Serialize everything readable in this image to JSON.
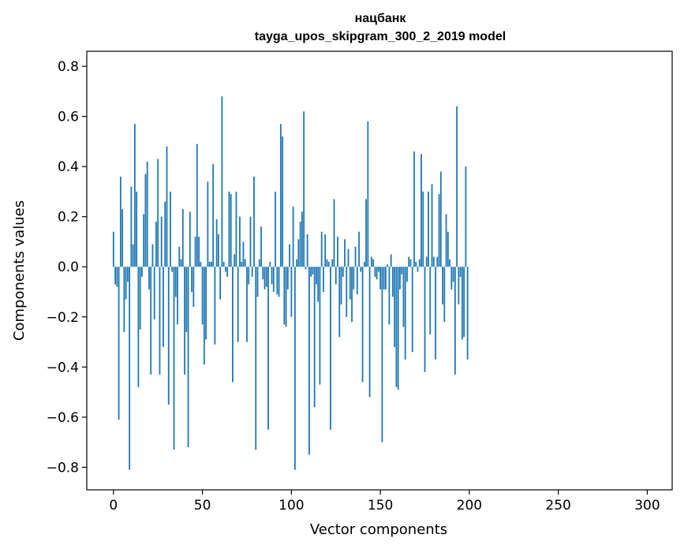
{
  "chart_data": {
    "type": "bar",
    "title_line1": "нацбанк",
    "title_line2": "tayga_upos_skipgram_300_2_2019 model",
    "xlabel": "Vector components",
    "ylabel": "Components values",
    "xlim": [
      -15,
      314
    ],
    "ylim": [
      -0.89,
      0.86
    ],
    "xticks": [
      0,
      50,
      100,
      150,
      200,
      250,
      300
    ],
    "yticks": [
      -0.8,
      -0.6,
      -0.4,
      -0.2,
      0.0,
      0.2,
      0.4,
      0.6,
      0.8
    ],
    "ytick_labels": [
      "−0.8",
      "−0.6",
      "−0.4",
      "−0.2",
      "0.0",
      "0.2",
      "0.4",
      "0.6",
      "0.8"
    ],
    "xtick_labels": [
      "0",
      "50",
      "100",
      "150",
      "200",
      "250",
      "300"
    ],
    "bar_color": "#1f77b4",
    "grid": false,
    "values": [
      0.14,
      -0.07,
      -0.08,
      -0.61,
      0.36,
      0.23,
      -0.26,
      -0.13,
      -0.06,
      -0.81,
      0.32,
      0.09,
      0.57,
      0.3,
      -0.48,
      -0.25,
      -0.04,
      0.21,
      0.37,
      0.42,
      -0.09,
      -0.43,
      0.09,
      -0.21,
      0.18,
      0.43,
      -0.43,
      0.2,
      -0.32,
      0.26,
      0.48,
      -0.55,
      0.3,
      -0.02,
      -0.73,
      -0.12,
      -0.23,
      0.08,
      0.03,
      0.23,
      -0.43,
      -0.26,
      -0.72,
      0.22,
      -0.1,
      -0.16,
      0.12,
      0.49,
      0.12,
      0.02,
      -0.23,
      -0.39,
      -0.29,
      0.34,
      0.02,
      0.02,
      0.41,
      -0.31,
      0.19,
      0.13,
      -0.13,
      0.68,
      0.02,
      -0.02,
      -0.04,
      0.3,
      0.29,
      -0.46,
      0.05,
      0.3,
      -0.3,
      0.2,
      0.02,
      0.1,
      0.03,
      -0.3,
      -0.07,
      0.2,
      -0.04,
      0.36,
      -0.73,
      -0.12,
      0.03,
      0.16,
      -0.05,
      -0.09,
      -0.08,
      -0.65,
      0.02,
      -0.07,
      -0.1,
      0.3,
      -0.11,
      -0.12,
      0.57,
      0.52,
      -0.23,
      -0.24,
      -0.09,
      0.09,
      -0.2,
      0.24,
      -0.81,
      0.03,
      0.11,
      0.18,
      0.22,
      0.62,
      -0.01,
      0.13,
      -0.75,
      -0.04,
      -0.03,
      -0.56,
      -0.07,
      -0.14,
      -0.47,
      0.14,
      -0.1,
      0.13,
      0.03,
      0.02,
      -0.65,
      0.03,
      0.27,
      -0.07,
      0.12,
      -0.28,
      -0.15,
      -0.04,
      0.11,
      -0.2,
      0.07,
      -0.13,
      -0.22,
      -0.09,
      0.08,
      -0.11,
      0.14,
      -0.02,
      -0.46,
      0.02,
      0.27,
      0.58,
      -0.52,
      0.04,
      0.03,
      -0.04,
      -0.05,
      -0.02,
      -0.09,
      -0.7,
      -0.09,
      -0.09,
      0.01,
      -0.23,
      0.05,
      -0.12,
      -0.32,
      -0.48,
      -0.49,
      -0.09,
      -0.03,
      -0.24,
      -0.37,
      -0.06,
      0.04,
      0.03,
      -0.34,
      0.46,
      0.02,
      -0.02,
      0.03,
      0.45,
      0.3,
      -0.42,
      0.04,
      0.3,
      -0.27,
      0.33,
      0.04,
      -0.37,
      0.04,
      0.29,
      0.38,
      -0.15,
      -0.22,
      0.21,
      0.14,
      0.03,
      -0.09,
      -0.06,
      -0.43,
      0.64,
      -0.15,
      -0.04,
      -0.29,
      -0.28,
      0.4,
      -0.37
    ]
  }
}
